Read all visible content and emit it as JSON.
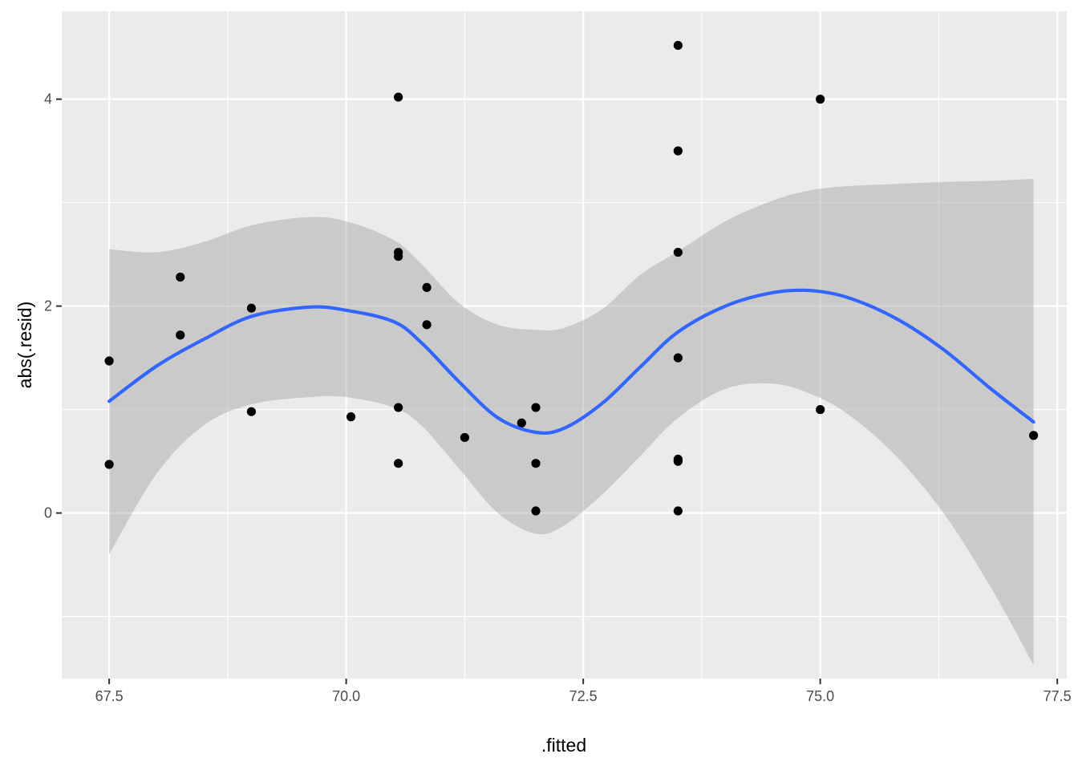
{
  "chart_data": {
    "type": "scatter",
    "xlabel": ".fitted",
    "ylabel": "abs(.resid)",
    "xlim": [
      67.0,
      77.6
    ],
    "ylim": [
      -1.6,
      4.85
    ],
    "x_ticks": [
      67.5,
      70.0,
      72.5,
      75.0,
      77.5
    ],
    "x_tick_labels": [
      "67.5",
      "70.0",
      "72.5",
      "75.0",
      "77.5"
    ],
    "y_ticks": [
      0,
      2,
      4
    ],
    "y_tick_labels": [
      "0",
      "2",
      "4"
    ],
    "x_minor_ticks": [
      68.75,
      71.25,
      73.75,
      76.25
    ],
    "y_minor_ticks": [
      -1,
      1,
      3
    ],
    "grid": true,
    "legend": "none",
    "colors": {
      "panel": "#ebebeb",
      "grid": "#ffffff",
      "point": "#000000",
      "smooth_line": "#3366ff",
      "confidence_band": "#999999"
    },
    "points": {
      "x": [
        67.5,
        67.5,
        68.25,
        68.25,
        69.0,
        69.0,
        70.05,
        70.55,
        70.55,
        70.55,
        70.55,
        70.55,
        70.85,
        70.85,
        71.25,
        71.85,
        72.0,
        72.0,
        72.0,
        73.5,
        73.5,
        73.5,
        73.5,
        73.5,
        73.5,
        73.5,
        75.0,
        75.0,
        77.25
      ],
      "y": [
        1.47,
        0.47,
        2.28,
        1.72,
        1.98,
        0.98,
        0.93,
        4.02,
        2.52,
        2.48,
        1.02,
        0.48,
        2.18,
        1.82,
        0.73,
        0.87,
        1.02,
        0.48,
        0.02,
        4.52,
        3.5,
        2.52,
        1.5,
        0.52,
        0.5,
        0.02,
        4.0,
        1.0,
        0.75
      ]
    },
    "smooth": {
      "x": [
        67.5,
        68.0,
        68.5,
        69.0,
        69.6,
        70.0,
        70.5,
        70.8,
        71.2,
        71.6,
        72.0,
        72.3,
        72.7,
        73.1,
        73.5,
        74.0,
        74.5,
        74.9,
        75.3,
        75.8,
        76.3,
        76.8,
        77.25
      ],
      "y": [
        1.08,
        1.42,
        1.68,
        1.9,
        1.99,
        1.96,
        1.85,
        1.64,
        1.26,
        0.92,
        0.78,
        0.82,
        1.06,
        1.41,
        1.75,
        2.0,
        2.13,
        2.15,
        2.08,
        1.88,
        1.58,
        1.2,
        0.88
      ],
      "upper": [
        2.55,
        2.52,
        2.62,
        2.78,
        2.86,
        2.82,
        2.64,
        2.4,
        2.02,
        1.82,
        1.77,
        1.79,
        1.97,
        2.3,
        2.53,
        2.82,
        3.02,
        3.12,
        3.16,
        3.18,
        3.2,
        3.21,
        3.23
      ],
      "lower": [
        -0.4,
        0.38,
        0.85,
        1.05,
        1.12,
        1.12,
        1.02,
        0.84,
        0.42,
        0.0,
        -0.2,
        -0.12,
        0.18,
        0.55,
        0.92,
        1.2,
        1.25,
        1.15,
        0.95,
        0.55,
        0.0,
        -0.72,
        -1.47
      ]
    }
  }
}
